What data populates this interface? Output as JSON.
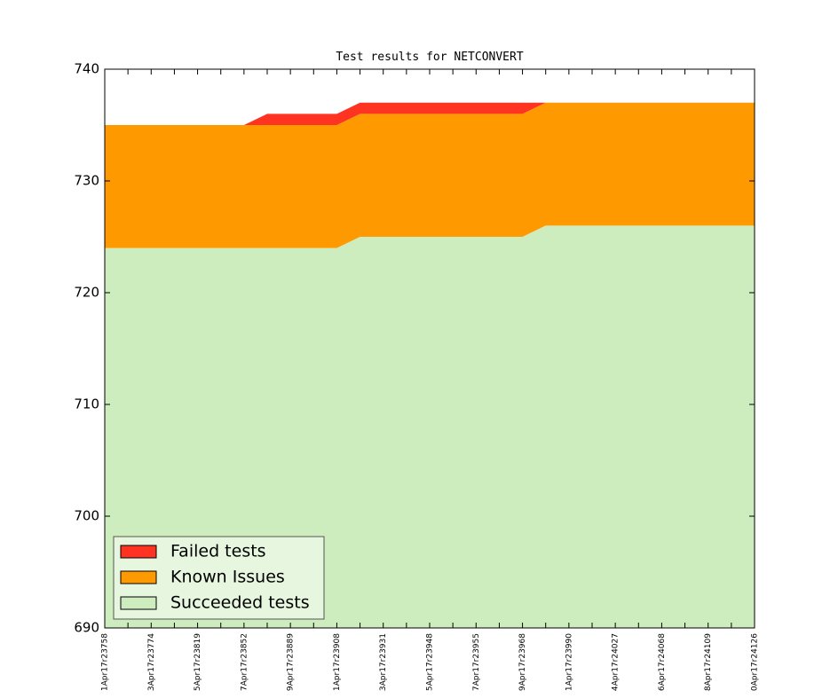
{
  "chart_data": {
    "type": "stacked-area",
    "title": "Test results for NETCONVERT",
    "categories": [
      "1Apr17r23758",
      null,
      "3Apr17r23774",
      null,
      "5Apr17r23819",
      null,
      "7Apr17r23852",
      null,
      "9Apr17r23889",
      null,
      "1Apr17r23908",
      null,
      "3Apr17r23931",
      null,
      "5Apr17r23948",
      null,
      "7Apr17r23955",
      null,
      "9Apr17r23968",
      null,
      "1Apr17r23990",
      null,
      "4Apr17r24027",
      null,
      "6Apr17r24068",
      null,
      "8Apr17r24109",
      null,
      "0Apr17r24126"
    ],
    "series": [
      {
        "name": "Failed tests",
        "color": "#ff3322",
        "values": [
          0,
          0,
          0,
          0,
          0,
          0,
          0,
          1,
          1,
          1,
          1,
          1,
          1,
          1,
          1,
          1,
          1,
          1,
          1,
          0,
          0,
          0,
          0,
          0,
          0,
          0,
          0,
          0,
          0
        ]
      },
      {
        "name": "Known Issues",
        "color": "#ff9900",
        "values": [
          11,
          11,
          11,
          11,
          11,
          11,
          11,
          11,
          11,
          11,
          11,
          11,
          11,
          11,
          11,
          11,
          11,
          11,
          11,
          11,
          11,
          11,
          11,
          11,
          11,
          11,
          11,
          11,
          11
        ]
      },
      {
        "name": "Succeeded tests",
        "color": "#ceedbf",
        "values": [
          724,
          724,
          724,
          724,
          724,
          724,
          724,
          724,
          724,
          724,
          724,
          725,
          725,
          725,
          725,
          725,
          725,
          725,
          725,
          726,
          726,
          726,
          726,
          726,
          726,
          726,
          726,
          726,
          726
        ]
      }
    ],
    "ylim": [
      690,
      740
    ],
    "yticks": [
      690,
      700,
      710,
      720,
      730,
      740
    ],
    "legend": "lower left"
  }
}
